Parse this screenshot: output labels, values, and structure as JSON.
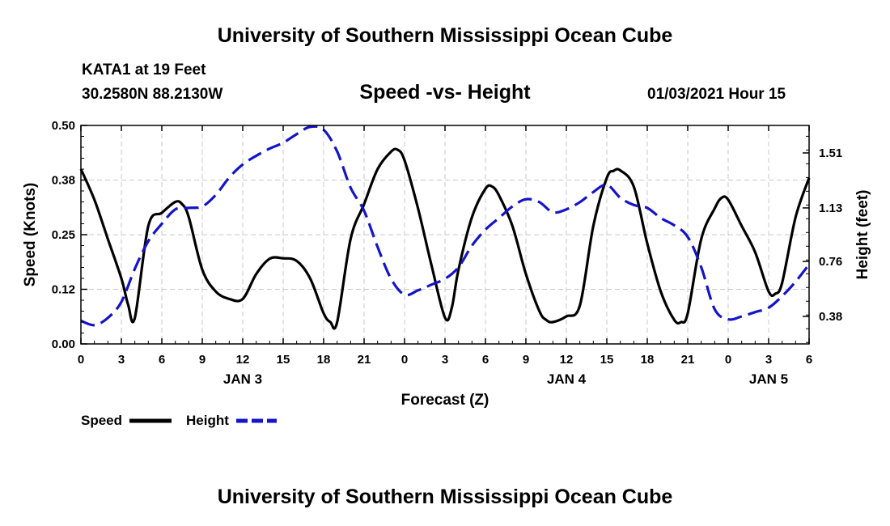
{
  "header": {
    "title": "University of Southern Mississippi Ocean Cube",
    "station": "KATA1 at 19 Feet",
    "coords": "30.2580N 88.2130W",
    "chart_title": "Speed -vs- Height",
    "datetime": "01/03/2021 Hour 15"
  },
  "footer": {
    "title": "University of Southern Mississippi Ocean Cube"
  },
  "colors": {
    "speed": "#000000",
    "height": "#1414c8",
    "grid": "#c8c8c8"
  },
  "chart_data": {
    "type": "line",
    "title": "Speed -vs- Height",
    "xlabel": "Forecast (Z)",
    "ylabel": "Speed (Knots)",
    "y2label": "Height (feet)",
    "xlim": [
      0,
      54
    ],
    "ylim": [
      0,
      0.5
    ],
    "y2lim": [
      0.19,
      1.7
    ],
    "x_ticks": [
      0,
      3,
      6,
      9,
      12,
      15,
      18,
      21,
      24,
      27,
      30,
      33,
      36,
      39,
      42,
      45,
      48,
      51,
      54
    ],
    "x_tick_labels": [
      "0",
      "3",
      "6",
      "9",
      "12",
      "15",
      "18",
      "21",
      "0",
      "3",
      "6",
      "9",
      "12",
      "15",
      "18",
      "21",
      "0",
      "3",
      "6"
    ],
    "y_ticks": [
      0,
      0.125,
      0.25,
      0.375,
      0.5
    ],
    "y_tick_labels": [
      "0.00",
      "0.12",
      "0.25",
      "0.38",
      "0.50"
    ],
    "y2_ticks": [
      0.38,
      0.76,
      1.13,
      1.51
    ],
    "y2_tick_labels": [
      "0.38",
      "0.76",
      "1.13",
      "1.51"
    ],
    "day_labels": [
      {
        "x": 12,
        "label": "JAN 3"
      },
      {
        "x": 36,
        "label": "JAN 4"
      },
      {
        "x": 51,
        "label": "JAN 5"
      }
    ],
    "grid": true,
    "legend": [
      "Speed",
      "Height"
    ],
    "series": [
      {
        "name": "Speed",
        "axis": "left",
        "style": "solid",
        "points": [
          [
            0,
            0.4
          ],
          [
            1,
            0.33
          ],
          [
            2,
            0.24
          ],
          [
            3,
            0.15
          ],
          [
            3.5,
            0.09
          ],
          [
            4,
            0.06
          ],
          [
            5,
            0.27
          ],
          [
            6,
            0.3
          ],
          [
            7,
            0.325
          ],
          [
            7.5,
            0.32
          ],
          [
            8,
            0.29
          ],
          [
            9,
            0.17
          ],
          [
            10,
            0.12
          ],
          [
            11,
            0.103
          ],
          [
            12,
            0.103
          ],
          [
            13,
            0.16
          ],
          [
            14,
            0.195
          ],
          [
            15,
            0.196
          ],
          [
            16,
            0.19
          ],
          [
            17,
            0.15
          ],
          [
            18,
            0.07
          ],
          [
            18.5,
            0.05
          ],
          [
            19,
            0.05
          ],
          [
            20,
            0.24
          ],
          [
            21,
            0.32
          ],
          [
            22,
            0.4
          ],
          [
            23,
            0.44
          ],
          [
            23.5,
            0.444
          ],
          [
            24,
            0.42
          ],
          [
            25,
            0.31
          ],
          [
            26,
            0.18
          ],
          [
            27,
            0.06
          ],
          [
            27.5,
            0.082
          ],
          [
            28,
            0.17
          ],
          [
            29,
            0.29
          ],
          [
            30,
            0.355
          ],
          [
            30.5,
            0.36
          ],
          [
            31,
            0.34
          ],
          [
            32,
            0.27
          ],
          [
            33,
            0.16
          ],
          [
            34,
            0.075
          ],
          [
            34.5,
            0.055
          ],
          [
            35,
            0.05
          ],
          [
            36,
            0.063
          ],
          [
            37,
            0.088
          ],
          [
            38,
            0.27
          ],
          [
            39,
            0.38
          ],
          [
            39.5,
            0.396
          ],
          [
            40,
            0.397
          ],
          [
            41,
            0.36
          ],
          [
            42,
            0.23
          ],
          [
            43,
            0.12
          ],
          [
            44,
            0.055
          ],
          [
            44.5,
            0.05
          ],
          [
            45,
            0.07
          ],
          [
            46,
            0.24
          ],
          [
            47,
            0.31
          ],
          [
            47.5,
            0.334
          ],
          [
            48,
            0.33
          ],
          [
            49,
            0.27
          ],
          [
            50,
            0.21
          ],
          [
            51,
            0.12
          ],
          [
            51.5,
            0.115
          ],
          [
            52,
            0.14
          ],
          [
            53,
            0.29
          ],
          [
            54,
            0.38
          ]
        ]
      },
      {
        "name": "Height",
        "axis": "right",
        "style": "dashed",
        "points": [
          [
            0,
            0.35
          ],
          [
            1,
            0.32
          ],
          [
            2,
            0.37
          ],
          [
            3,
            0.48
          ],
          [
            4,
            0.71
          ],
          [
            5,
            0.9
          ],
          [
            6,
            1.02
          ],
          [
            7,
            1.12
          ],
          [
            8,
            1.13
          ],
          [
            9,
            1.14
          ],
          [
            10,
            1.22
          ],
          [
            11,
            1.34
          ],
          [
            12,
            1.43
          ],
          [
            13,
            1.49
          ],
          [
            14,
            1.54
          ],
          [
            15,
            1.58
          ],
          [
            16,
            1.64
          ],
          [
            17,
            1.69
          ],
          [
            18,
            1.67
          ],
          [
            19,
            1.52
          ],
          [
            20,
            1.27
          ],
          [
            21,
            1.11
          ],
          [
            22,
            0.86
          ],
          [
            23,
            0.64
          ],
          [
            24,
            0.53
          ],
          [
            25,
            0.56
          ],
          [
            26,
            0.6
          ],
          [
            27,
            0.64
          ],
          [
            28,
            0.72
          ],
          [
            29,
            0.87
          ],
          [
            30,
            0.98
          ],
          [
            31,
            1.06
          ],
          [
            32,
            1.14
          ],
          [
            33,
            1.19
          ],
          [
            34,
            1.17
          ],
          [
            35,
            1.1
          ],
          [
            36,
            1.12
          ],
          [
            37,
            1.17
          ],
          [
            38,
            1.24
          ],
          [
            39,
            1.29
          ],
          [
            40,
            1.2
          ],
          [
            41,
            1.15
          ],
          [
            42,
            1.13
          ],
          [
            43,
            1.06
          ],
          [
            44,
            1.01
          ],
          [
            45,
            0.93
          ],
          [
            46,
            0.72
          ],
          [
            47,
            0.43
          ],
          [
            48,
            0.36
          ],
          [
            49,
            0.38
          ],
          [
            50,
            0.41
          ],
          [
            51,
            0.44
          ],
          [
            52,
            0.52
          ],
          [
            53,
            0.62
          ],
          [
            54,
            0.74
          ]
        ]
      }
    ]
  }
}
